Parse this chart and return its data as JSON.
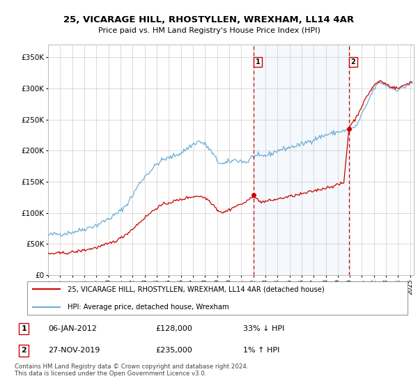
{
  "title": "25, VICARAGE HILL, RHOSTYLLEN, WREXHAM, LL14 4AR",
  "subtitle": "Price paid vs. HM Land Registry's House Price Index (HPI)",
  "ylim": [
    0,
    370000
  ],
  "xlim_start": 1995.0,
  "xlim_end": 2025.3,
  "yticks": [
    0,
    50000,
    100000,
    150000,
    200000,
    250000,
    300000,
    350000
  ],
  "ytick_labels": [
    "£0",
    "£50K",
    "£100K",
    "£150K",
    "£200K",
    "£250K",
    "£300K",
    "£350K"
  ],
  "sale1_date": 2012.03,
  "sale1_price": 128000,
  "sale2_date": 2019.92,
  "sale2_price": 235000,
  "legend_line1": "25, VICARAGE HILL, RHOSTYLLEN, WREXHAM, LL14 4AR (detached house)",
  "legend_line2": "HPI: Average price, detached house, Wrexham",
  "annotation1_date": "06-JAN-2012",
  "annotation1_price": "£128,000",
  "annotation1_hpi": "33% ↓ HPI",
  "annotation2_date": "27-NOV-2019",
  "annotation2_price": "£235,000",
  "annotation2_hpi": "1% ↑ HPI",
  "footer": "Contains HM Land Registry data © Crown copyright and database right 2024.\nThis data is licensed under the Open Government Licence v3.0.",
  "hpi_color": "#6baed6",
  "sale_color": "#cc0000",
  "highlight_bg": "#ddeeff",
  "background_color": "#ffffff",
  "hpi_key_points": [
    [
      1995.0,
      64000
    ],
    [
      1995.5,
      65500
    ],
    [
      1996.0,
      66000
    ],
    [
      1996.5,
      67000
    ],
    [
      1997.0,
      69000
    ],
    [
      1997.5,
      71000
    ],
    [
      1998.0,
      74000
    ],
    [
      1998.5,
      77000
    ],
    [
      1999.0,
      80000
    ],
    [
      1999.5,
      85000
    ],
    [
      2000.0,
      90000
    ],
    [
      2000.5,
      96000
    ],
    [
      2001.0,
      103000
    ],
    [
      2001.5,
      113000
    ],
    [
      2002.0,
      128000
    ],
    [
      2002.5,
      145000
    ],
    [
      2003.0,
      158000
    ],
    [
      2003.5,
      168000
    ],
    [
      2004.0,
      178000
    ],
    [
      2004.5,
      185000
    ],
    [
      2005.0,
      188000
    ],
    [
      2005.5,
      192000
    ],
    [
      2006.0,
      196000
    ],
    [
      2006.5,
      203000
    ],
    [
      2007.0,
      210000
    ],
    [
      2007.5,
      215000
    ],
    [
      2008.0,
      210000
    ],
    [
      2008.25,
      205000
    ],
    [
      2008.75,
      192000
    ],
    [
      2009.0,
      183000
    ],
    [
      2009.5,
      178000
    ],
    [
      2010.0,
      182000
    ],
    [
      2010.5,
      185000
    ],
    [
      2011.0,
      183000
    ],
    [
      2011.5,
      181000
    ],
    [
      2012.0,
      192000
    ],
    [
      2012.5,
      190000
    ],
    [
      2013.0,
      192000
    ],
    [
      2013.5,
      195000
    ],
    [
      2014.0,
      200000
    ],
    [
      2015.0,
      205000
    ],
    [
      2016.0,
      210000
    ],
    [
      2017.0,
      218000
    ],
    [
      2018.0,
      225000
    ],
    [
      2019.0,
      230000
    ],
    [
      2019.92,
      233000
    ],
    [
      2020.5,
      238000
    ],
    [
      2021.0,
      258000
    ],
    [
      2021.5,
      278000
    ],
    [
      2022.0,
      300000
    ],
    [
      2022.5,
      310000
    ],
    [
      2023.0,
      305000
    ],
    [
      2023.5,
      300000
    ],
    [
      2024.0,
      298000
    ],
    [
      2024.5,
      302000
    ],
    [
      2025.0,
      308000
    ]
  ],
  "red_key_points": [
    [
      1995.0,
      34000
    ],
    [
      1995.5,
      34500
    ],
    [
      1996.0,
      35000
    ],
    [
      1996.5,
      35500
    ],
    [
      1997.0,
      36500
    ],
    [
      1997.5,
      38000
    ],
    [
      1998.0,
      40000
    ],
    [
      1998.5,
      42000
    ],
    [
      1999.0,
      44000
    ],
    [
      1999.5,
      47000
    ],
    [
      2000.0,
      50000
    ],
    [
      2000.5,
      54000
    ],
    [
      2001.0,
      59000
    ],
    [
      2001.5,
      66000
    ],
    [
      2002.0,
      74000
    ],
    [
      2002.5,
      83000
    ],
    [
      2003.0,
      92000
    ],
    [
      2003.5,
      100000
    ],
    [
      2004.0,
      108000
    ],
    [
      2004.5,
      113000
    ],
    [
      2005.0,
      116000
    ],
    [
      2005.5,
      119000
    ],
    [
      2006.0,
      121000
    ],
    [
      2006.5,
      124000
    ],
    [
      2007.0,
      126000
    ],
    [
      2007.5,
      127000
    ],
    [
      2008.0,
      124000
    ],
    [
      2008.25,
      121000
    ],
    [
      2008.75,
      112000
    ],
    [
      2009.0,
      105000
    ],
    [
      2009.5,
      100000
    ],
    [
      2010.0,
      105000
    ],
    [
      2010.5,
      110000
    ],
    [
      2011.0,
      114000
    ],
    [
      2011.5,
      118000
    ],
    [
      2012.0,
      128000
    ],
    [
      2012.5,
      118000
    ],
    [
      2013.0,
      118000
    ],
    [
      2013.5,
      120000
    ],
    [
      2014.0,
      122000
    ],
    [
      2015.0,
      126000
    ],
    [
      2016.0,
      130000
    ],
    [
      2017.0,
      135000
    ],
    [
      2018.0,
      140000
    ],
    [
      2019.0,
      145000
    ],
    [
      2019.5,
      148000
    ],
    [
      2019.92,
      235000
    ],
    [
      2020.0,
      240000
    ],
    [
      2020.5,
      252000
    ],
    [
      2021.0,
      272000
    ],
    [
      2021.5,
      290000
    ],
    [
      2022.0,
      305000
    ],
    [
      2022.5,
      312000
    ],
    [
      2023.0,
      307000
    ],
    [
      2023.5,
      302000
    ],
    [
      2024.0,
      300000
    ],
    [
      2024.5,
      305000
    ],
    [
      2025.0,
      310000
    ]
  ]
}
